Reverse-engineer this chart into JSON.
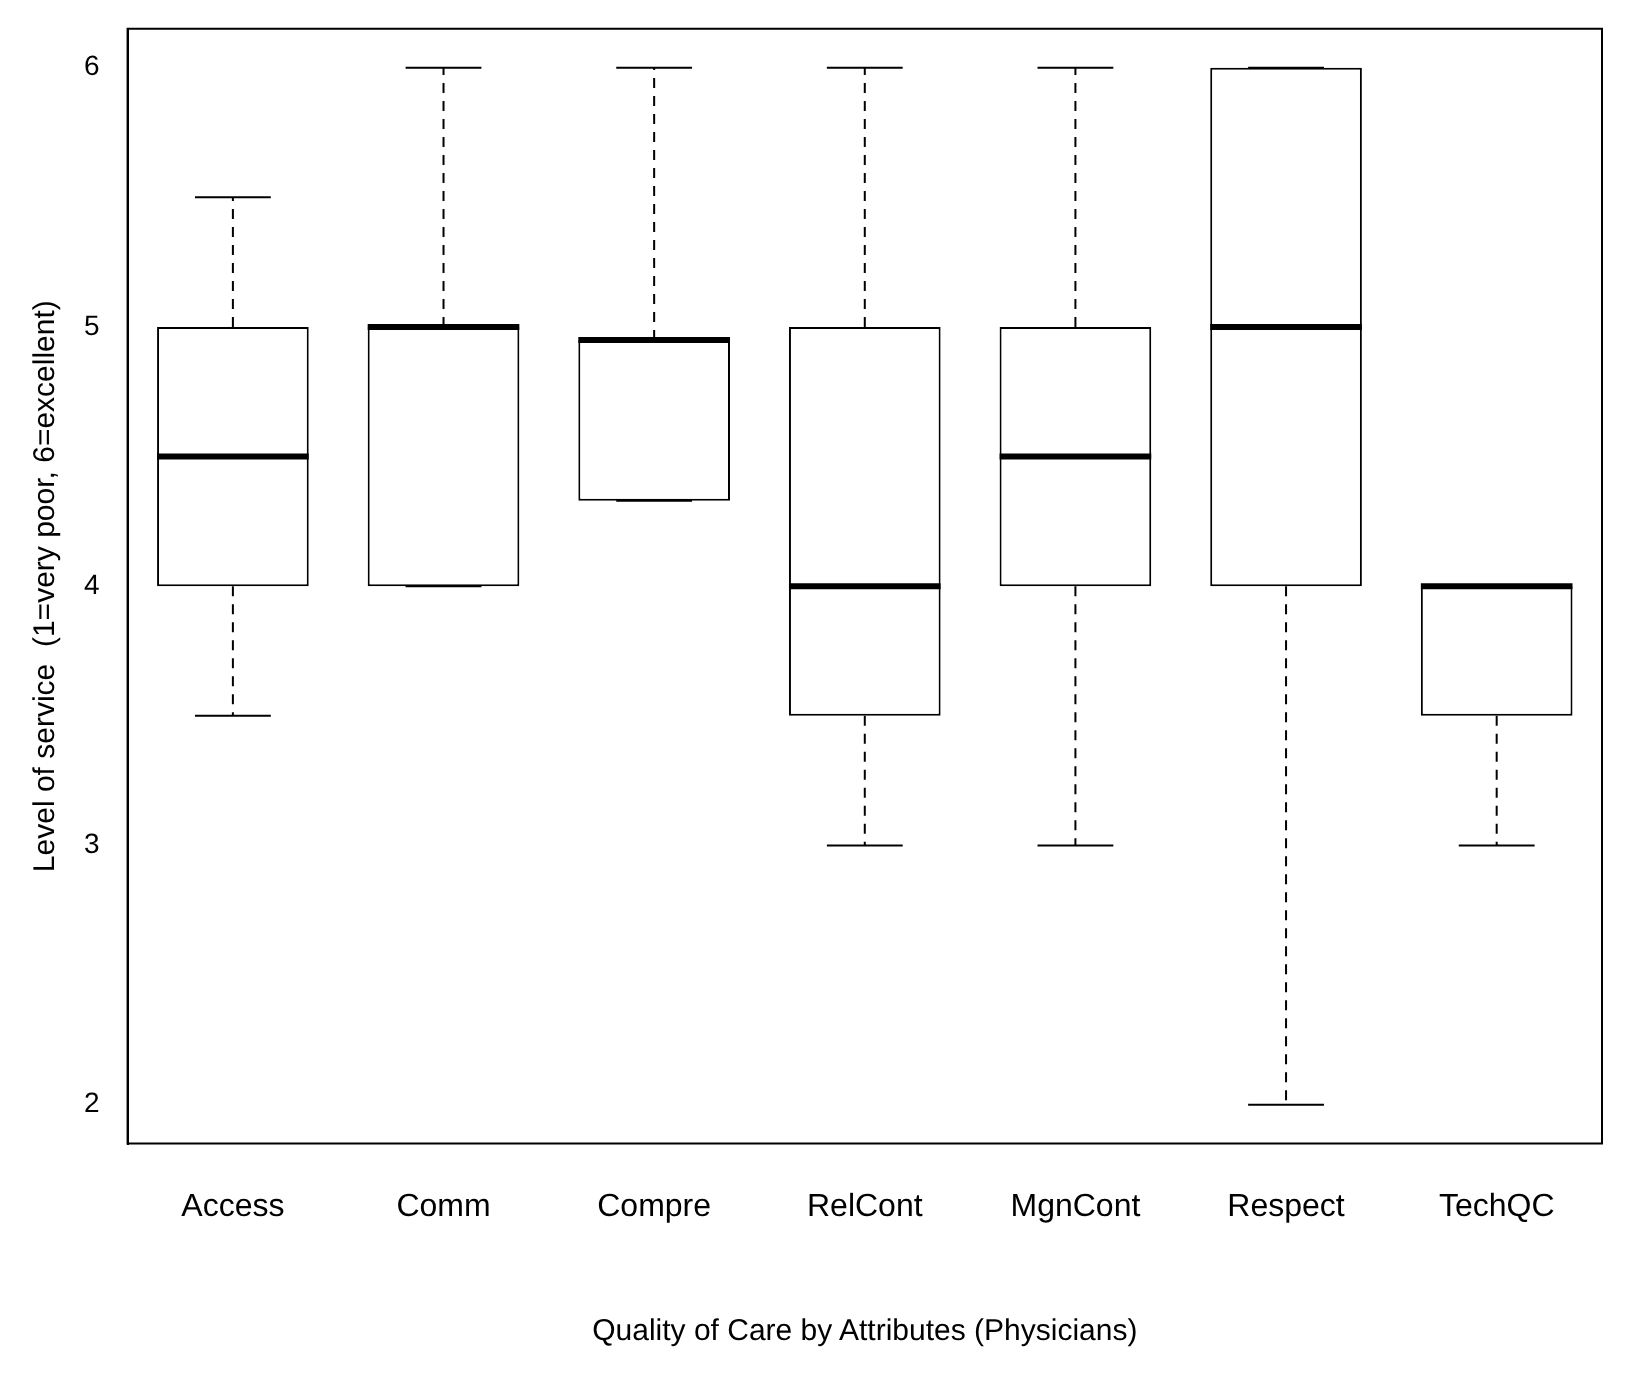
{
  "chart_data": {
    "type": "box",
    "xlabel": "Quality of Care by Attributes (Physicians)",
    "ylabel": "Level of service  (1=very poor, 6=excellent)",
    "categories": [
      "Access",
      "Comm",
      "Compre",
      "RelCont",
      "MgnCont",
      "Respect",
      "TechQC"
    ],
    "boxes": [
      {
        "low": 3.5,
        "q1": 4,
        "median": 4.5,
        "q3": 5,
        "high": 5.5
      },
      {
        "low": 4,
        "q1": 4,
        "median": 5,
        "q3": 5,
        "high": 6
      },
      {
        "low": 4.33,
        "q1": 4.33,
        "median": 4.95,
        "q3": 4.95,
        "high": 6
      },
      {
        "low": 3,
        "q1": 3.5,
        "median": 4,
        "q3": 5,
        "high": 6
      },
      {
        "low": 3,
        "q1": 4,
        "median": 4.5,
        "q3": 5,
        "high": 6
      },
      {
        "low": 2,
        "q1": 4,
        "median": 5,
        "q3": 6,
        "high": 6
      },
      {
        "low": 3,
        "q1": 3.5,
        "median": 4,
        "q3": 4,
        "high": 4
      }
    ],
    "color": "#000000",
    "ylim": [
      1.85,
      6.15
    ],
    "yticks": [
      2,
      3,
      4,
      5,
      6
    ],
    "grid": false,
    "legend": false,
    "line_style": "dashed"
  }
}
